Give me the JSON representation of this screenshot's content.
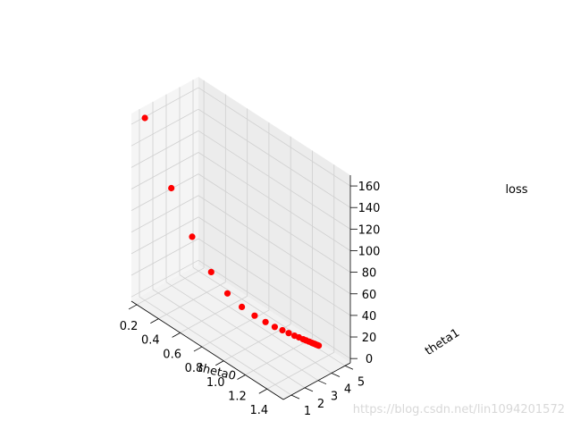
{
  "chart_data": {
    "type": "scatter",
    "projection": "3d",
    "marker_color": "#ff0000",
    "x_axis": {
      "label": "theta0",
      "range": [
        0.15,
        1.55
      ],
      "ticks": [
        "0.2",
        "0.4",
        "0.6",
        "0.8",
        "1.0",
        "1.2",
        "1.4"
      ]
    },
    "y_axis": {
      "label": "theta1",
      "range": [
        0.4,
        5.4
      ],
      "ticks": [
        "1",
        "2",
        "3",
        "4",
        "5"
      ]
    },
    "z_axis": {
      "label": "loss",
      "range": [
        -4,
        170
      ],
      "ticks": [
        "0",
        "20",
        "40",
        "60",
        "80",
        "100",
        "120",
        "140",
        "160"
      ]
    },
    "points": [
      {
        "theta0": 0.2,
        "theta1": 1.0,
        "loss": 165
      },
      {
        "theta0": 0.37,
        "theta1": 1.6,
        "loss": 107
      },
      {
        "theta0": 0.5,
        "theta1": 2.1,
        "loss": 67
      },
      {
        "theta0": 0.62,
        "theta1": 2.55,
        "loss": 39
      },
      {
        "theta0": 0.72,
        "theta1": 2.95,
        "loss": 23
      },
      {
        "theta0": 0.81,
        "theta1": 3.3,
        "loss": 14
      },
      {
        "theta0": 0.89,
        "theta1": 3.6,
        "loss": 9
      },
      {
        "theta0": 0.96,
        "theta1": 3.85,
        "loss": 6
      },
      {
        "theta0": 1.02,
        "theta1": 4.05,
        "loss": 4
      },
      {
        "theta0": 1.07,
        "theta1": 4.22,
        "loss": 3
      },
      {
        "theta0": 1.11,
        "theta1": 4.36,
        "loss": 2
      },
      {
        "theta0": 1.15,
        "theta1": 4.47,
        "loss": 1.5
      },
      {
        "theta0": 1.18,
        "theta1": 4.56,
        "loss": 1.2
      },
      {
        "theta0": 1.21,
        "theta1": 4.63,
        "loss": 1
      },
      {
        "theta0": 1.23,
        "theta1": 4.69,
        "loss": 0.8
      },
      {
        "theta0": 1.25,
        "theta1": 4.74,
        "loss": 0.7
      },
      {
        "theta0": 1.27,
        "theta1": 4.78,
        "loss": 0.6
      },
      {
        "theta0": 1.28,
        "theta1": 4.81,
        "loss": 0.5
      },
      {
        "theta0": 1.29,
        "theta1": 4.84,
        "loss": 0.5
      },
      {
        "theta0": 1.3,
        "theta1": 4.86,
        "loss": 0.4
      },
      {
        "theta0": 1.31,
        "theta1": 4.88,
        "loss": 0.4
      },
      {
        "theta0": 1.32,
        "theta1": 4.9,
        "loss": 0.4
      }
    ]
  },
  "watermark": "https://blog.csdn.net/lin1094201572"
}
